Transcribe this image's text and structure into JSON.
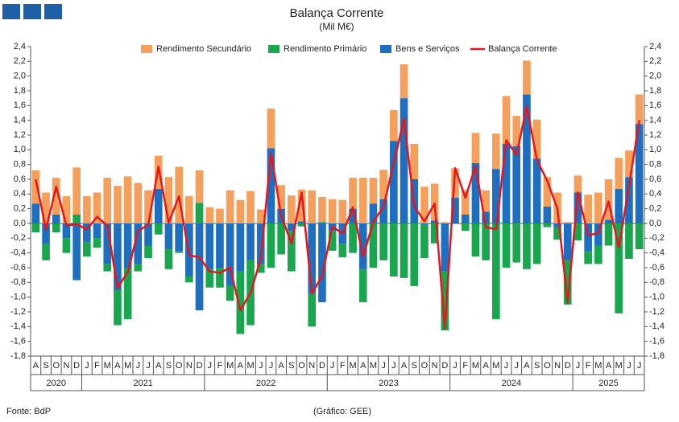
{
  "chart_data": {
    "type": "bar",
    "stacked": true,
    "title": "Balança Corrente",
    "subtitle": "(Mil M€)",
    "source": "Fonte: BdP",
    "credit": "(Gráfico: GEE)",
    "categories": [
      "A",
      "S",
      "O",
      "N",
      "D",
      "J",
      "F",
      "M",
      "A",
      "M",
      "J",
      "J",
      "A",
      "S",
      "O",
      "N",
      "D",
      "J",
      "F",
      "M",
      "A",
      "M",
      "J",
      "J",
      "A",
      "S",
      "O",
      "N",
      "D",
      "J",
      "F",
      "M",
      "A",
      "M",
      "J",
      "J",
      "A",
      "S",
      "O",
      "N",
      "D",
      "J",
      "F",
      "M",
      "A",
      "M",
      "J",
      "J",
      "A",
      "S",
      "O",
      "N",
      "D",
      "J",
      "F",
      "M",
      "A",
      "M",
      "J",
      "J"
    ],
    "x_groups": [
      "2020",
      "2021",
      "2022",
      "2023",
      "2024",
      "2025"
    ],
    "series": [
      {
        "name": "Rendimento Secundário",
        "color": "#f4a05c",
        "kind": "bar",
        "values": [
          0.45,
          0.42,
          0.5,
          0.37,
          0.64,
          0.37,
          0.42,
          0.62,
          0.51,
          0.64,
          0.55,
          0.45,
          0.45,
          0.63,
          0.77,
          0.37,
          0.44,
          0.22,
          0.2,
          0.45,
          0.32,
          0.44,
          0.19,
          0.54,
          0.32,
          0.38,
          0.43,
          0.45,
          0.34,
          0.33,
          0.32,
          0.42,
          0.62,
          0.35,
          0.4,
          0.42,
          0.46,
          0.48,
          0.5,
          0.5,
          0.02,
          0.4,
          0.33,
          0.41,
          0.29,
          0.48,
          0.65,
          0.41,
          0.46,
          0.53,
          0.4,
          0.42,
          0.02,
          0.23,
          0.39,
          0.42,
          0.55,
          0.42,
          0.36,
          0.4
        ]
      },
      {
        "name": "Rendimento Primário",
        "color": "#1aa64f",
        "kind": "bar",
        "values": [
          -0.12,
          -0.22,
          -0.12,
          -0.2,
          0.12,
          -0.2,
          -0.13,
          -0.1,
          -0.48,
          -0.7,
          -0.1,
          -0.17,
          -0.15,
          -0.27,
          -0.02,
          -0.08,
          0.28,
          -0.25,
          -0.27,
          -0.2,
          -0.85,
          -0.88,
          -0.12,
          -0.6,
          -0.42,
          -0.55,
          -0.04,
          -0.45,
          0.02,
          -0.27,
          -0.18,
          -0.4,
          -0.45,
          -0.6,
          -0.5,
          -0.72,
          -0.74,
          -0.85,
          -0.45,
          -0.27,
          -0.8,
          0.0,
          -0.1,
          -0.45,
          -0.5,
          -1.3,
          -0.6,
          -0.53,
          -0.62,
          -0.55,
          -0.05,
          -0.17,
          -0.6,
          -0.23,
          -0.17,
          -0.25,
          -0.3,
          -1.22,
          -0.48,
          -0.35
        ]
      },
      {
        "name": "Bens e Serviços",
        "color": "#1f6fc0",
        "kind": "bar",
        "values": [
          0.27,
          -0.28,
          0.12,
          -0.2,
          -0.77,
          -0.25,
          -0.2,
          -0.55,
          -0.9,
          -0.6,
          -0.55,
          -0.3,
          0.47,
          -0.35,
          -0.38,
          -0.72,
          -1.18,
          -0.62,
          -0.6,
          -0.85,
          -0.65,
          -0.5,
          -0.55,
          1.02,
          0.2,
          -0.1,
          0.03,
          -0.95,
          -1.07,
          -0.1,
          -0.28,
          0.2,
          -0.62,
          0.27,
          0.33,
          1.12,
          1.7,
          0.6,
          -0.02,
          0.04,
          -0.65,
          0.35,
          0.12,
          0.82,
          0.16,
          0.74,
          1.08,
          1.05,
          1.75,
          0.88,
          0.23,
          -0.05,
          -0.5,
          0.42,
          -0.38,
          -0.3,
          0.05,
          0.47,
          0.63,
          1.35
        ]
      },
      {
        "name": "Balança Corrente",
        "color": "#e8161b",
        "kind": "line",
        "values": [
          0.6,
          -0.08,
          0.5,
          -0.03,
          -0.01,
          -0.08,
          0.09,
          -0.03,
          -0.87,
          -0.66,
          -0.1,
          -0.02,
          0.77,
          0.01,
          0.37,
          -0.43,
          -0.46,
          -0.65,
          -0.67,
          -0.6,
          -1.18,
          -0.94,
          -0.48,
          0.96,
          0.1,
          -0.27,
          0.42,
          -0.95,
          -0.71,
          -0.04,
          -0.14,
          0.22,
          -0.45,
          0.02,
          0.23,
          0.82,
          1.42,
          0.23,
          0.03,
          0.27,
          -1.43,
          0.75,
          0.35,
          0.78,
          -0.05,
          -0.08,
          1.13,
          0.93,
          1.59,
          0.86,
          0.58,
          0.2,
          -1.08,
          0.42,
          -0.16,
          -0.13,
          0.3,
          -0.33,
          0.51,
          1.4
        ]
      }
    ],
    "ylim": [
      -1.8,
      2.4
    ],
    "yticks": [
      {
        "value": -1.8,
        "label": "-1,8"
      },
      {
        "value": -1.6,
        "label": "-1,6"
      },
      {
        "value": -1.4,
        "label": "-1,4"
      },
      {
        "value": -1.2,
        "label": "-1,2"
      },
      {
        "value": -1.0,
        "label": "-1,0"
      },
      {
        "value": -0.8,
        "label": "-0,8"
      },
      {
        "value": -0.6,
        "label": "-0,6"
      },
      {
        "value": -0.4,
        "label": "-0,4"
      },
      {
        "value": -0.2,
        "label": "-0,2"
      },
      {
        "value": 0,
        "label": "0,0"
      },
      {
        "value": 0.2,
        "label": "0,2"
      },
      {
        "value": 0.4,
        "label": "0,4"
      },
      {
        "value": 0.6,
        "label": "0,6"
      },
      {
        "value": 0.8,
        "label": "0,8"
      },
      {
        "value": 1.0,
        "label": "1,0"
      },
      {
        "value": 1.2,
        "label": "1,2"
      },
      {
        "value": 1.4,
        "label": "1,4"
      },
      {
        "value": 1.6,
        "label": "1,6"
      },
      {
        "value": 1.8,
        "label": "1,8"
      },
      {
        "value": 2.0,
        "label": "2,0"
      },
      {
        "value": 2.2,
        "label": "2,2"
      },
      {
        "value": 2.4,
        "label": "2,4"
      }
    ],
    "y2lim": [
      -1.8,
      2.4
    ],
    "y2ticks": [
      {
        "value": -1.8,
        "label": "-1,8"
      },
      {
        "value": -1.6,
        "label": "-1,6"
      },
      {
        "value": -1.4,
        "label": "-1,4"
      },
      {
        "value": -1.2,
        "label": "-1,2"
      },
      {
        "value": -1.0,
        "label": "-1,0"
      },
      {
        "value": -0.8,
        "label": "-0,8"
      },
      {
        "value": -0.6,
        "label": "-0,6"
      },
      {
        "value": -0.4,
        "label": "-0,4"
      },
      {
        "value": -0.2,
        "label": "-0,2"
      },
      {
        "value": 0,
        "label": "0,0"
      },
      {
        "value": 0.2,
        "label": "0,2"
      },
      {
        "value": 0.4,
        "label": "0,4"
      },
      {
        "value": 0.6,
        "label": "0,6"
      },
      {
        "value": 0.8,
        "label": "0,8"
      },
      {
        "value": 1.0,
        "label": "1,0"
      },
      {
        "value": 1.2,
        "label": "1,2"
      },
      {
        "value": 1.4,
        "label": "1,4"
      },
      {
        "value": 1.6,
        "label": "1,6"
      },
      {
        "value": 1.8,
        "label": "1,8"
      },
      {
        "value": 2.0,
        "label": "2,0"
      },
      {
        "value": 2.2,
        "label": "2,2"
      },
      {
        "value": 2.4,
        "label": "2,4"
      }
    ],
    "grid": false,
    "legend": "top"
  }
}
